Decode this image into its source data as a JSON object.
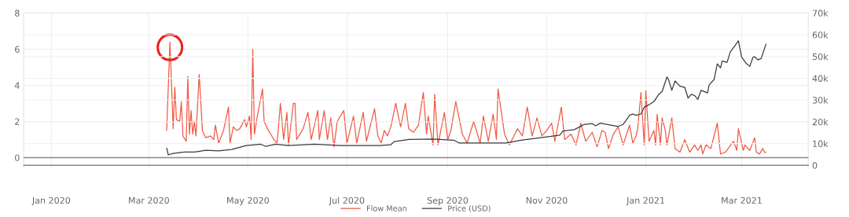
{
  "chart_data": {
    "type": "line",
    "xlim": [
      "2019-12-15",
      "2021-04-11"
    ],
    "xticks": [
      {
        "value": "2020-01-01",
        "label": "Jan 2020"
      },
      {
        "value": "2020-03-01",
        "label": "Mar 2020"
      },
      {
        "value": "2020-05-01",
        "label": "May 2020"
      },
      {
        "value": "2020-07-01",
        "label": "Jul 2020"
      },
      {
        "value": "2020-09-01",
        "label": "Sep 2020"
      },
      {
        "value": "2020-11-01",
        "label": "Nov 2020"
      },
      {
        "value": "2021-01-01",
        "label": "Jan 2021"
      },
      {
        "value": "2021-03-01",
        "label": "Mar 2021"
      }
    ],
    "ylim": [
      -0.55,
      8
    ],
    "yticks": [
      0,
      2,
      4,
      6,
      8
    ],
    "y2lim": [
      -1000,
      70000
    ],
    "y2ticks": [
      0,
      {
        "value": 10000,
        "label": "10k"
      },
      {
        "value": 20000,
        "label": "20k"
      },
      {
        "value": 30000,
        "label": "30k"
      },
      {
        "value": 40000,
        "label": "40k"
      },
      {
        "value": 50000,
        "label": "50k"
      },
      {
        "value": 60000,
        "label": "60k"
      },
      {
        "value": 70000,
        "label": "70k"
      }
    ],
    "grid": true,
    "legend": "bottom",
    "series": [
      {
        "name": "Flow Mean",
        "color": "#ef5a45",
        "x": [
          "2020-03-12",
          "2020-03-14",
          "2020-03-16",
          "2020-03-17",
          "2020-03-18",
          "2020-03-20",
          "2020-03-21",
          "2020-03-22",
          "2020-03-24",
          "2020-03-25",
          "2020-03-26",
          "2020-03-27",
          "2020-03-28",
          "2020-03-29",
          "2020-03-30",
          "2020-04-01",
          "2020-04-03",
          "2020-04-05",
          "2020-04-08",
          "2020-04-10",
          "2020-04-11",
          "2020-04-13",
          "2020-04-16",
          "2020-04-19",
          "2020-04-20",
          "2020-04-22",
          "2020-04-24",
          "2020-04-26",
          "2020-04-29",
          "2020-04-30",
          "2020-05-02",
          "2020-05-03",
          "2020-05-04",
          "2020-05-05",
          "2020-05-07",
          "2020-05-10",
          "2020-05-11",
          "2020-05-13",
          "2020-05-17",
          "2020-05-19",
          "2020-05-21",
          "2020-05-23",
          "2020-05-25",
          "2020-05-26",
          "2020-05-29",
          "2020-05-30",
          "2020-05-31",
          "2020-06-04",
          "2020-06-07",
          "2020-06-09",
          "2020-06-13",
          "2020-06-14",
          "2020-06-17",
          "2020-06-19",
          "2020-06-21",
          "2020-06-23",
          "2020-06-25",
          "2020-06-29",
          "2020-07-01",
          "2020-07-05",
          "2020-07-07",
          "2020-07-11",
          "2020-07-13",
          "2020-07-18",
          "2020-07-20",
          "2020-07-22",
          "2020-07-24",
          "2020-07-26",
          "2020-07-28",
          "2020-07-31",
          "2020-08-03",
          "2020-08-06",
          "2020-08-08",
          "2020-08-11",
          "2020-08-14",
          "2020-08-17",
          "2020-08-19",
          "2020-08-20",
          "2020-08-23",
          "2020-08-24",
          "2020-08-26",
          "2020-08-28",
          "2020-08-30",
          "2020-09-01",
          "2020-09-03",
          "2020-09-06",
          "2020-09-10",
          "2020-09-13",
          "2020-09-17",
          "2020-09-21",
          "2020-09-23",
          "2020-09-26",
          "2020-09-29",
          "2020-10-01",
          "2020-10-02",
          "2020-10-06",
          "2020-10-09",
          "2020-10-14",
          "2020-10-17",
          "2020-10-20",
          "2020-10-23",
          "2020-10-26",
          "2020-10-29",
          "2020-11-01",
          "2020-11-04",
          "2020-11-06",
          "2020-11-10",
          "2020-11-12",
          "2020-11-16",
          "2020-11-19",
          "2020-11-22",
          "2020-11-25",
          "2020-11-29",
          "2020-12-02",
          "2020-12-05",
          "2020-12-07",
          "2020-12-09",
          "2020-12-12",
          "2020-12-15",
          "2020-12-18",
          "2020-12-22",
          "2020-12-24",
          "2020-12-26",
          "2020-12-27",
          "2020-12-29",
          "2020-12-31",
          "2021-01-01",
          "2021-01-03",
          "2021-01-06",
          "2021-01-07",
          "2021-01-08",
          "2021-01-10",
          "2021-01-11",
          "2021-01-13",
          "2021-01-14",
          "2021-01-17",
          "2021-01-19",
          "2021-01-22",
          "2021-01-25",
          "2021-01-28",
          "2021-01-31",
          "2021-02-02",
          "2021-02-04",
          "2021-02-05",
          "2021-02-07",
          "2021-02-10",
          "2021-02-14",
          "2021-02-16",
          "2021-02-19",
          "2021-02-24",
          "2021-02-26",
          "2021-02-27",
          "2021-03-02",
          "2021-03-03",
          "2021-03-06",
          "2021-03-09",
          "2021-03-10",
          "2021-03-12",
          "2021-03-14",
          "2021-03-15",
          "2021-03-16"
        ],
        "values": [
          1.5,
          6.4,
          1.6,
          3.9,
          2.1,
          2.0,
          3.1,
          1.2,
          0.9,
          4.5,
          1.3,
          2.6,
          1.3,
          2.0,
          1.2,
          4.6,
          1.5,
          1.1,
          1.2,
          1.0,
          1.8,
          0.8,
          1.5,
          2.8,
          0.8,
          1.7,
          1.5,
          1.6,
          2.1,
          1.7,
          2.3,
          1.0,
          6.0,
          1.3,
          2.4,
          3.8,
          2.0,
          1.6,
          1.0,
          0.8,
          3.0,
          1.0,
          2.5,
          0.7,
          3.0,
          3.0,
          1.0,
          1.6,
          2.5,
          1.0,
          2.6,
          1.0,
          2.6,
          1.0,
          2.2,
          0.6,
          2.0,
          2.6,
          0.8,
          2.3,
          0.8,
          2.5,
          0.9,
          2.7,
          1.2,
          0.8,
          1.5,
          1.2,
          1.7,
          3.0,
          1.7,
          3.0,
          1.6,
          1.4,
          1.8,
          3.6,
          1.3,
          2.3,
          0.7,
          3.5,
          0.7,
          1.6,
          2.5,
          1.0,
          1.5,
          3.1,
          1.3,
          0.8,
          2.0,
          0.8,
          2.3,
          0.9,
          2.4,
          1.0,
          3.8,
          1.3,
          0.7,
          1.6,
          1.2,
          2.8,
          1.2,
          2.2,
          1.2,
          1.5,
          1.9,
          0.9,
          2.8,
          1.0,
          1.3,
          0.7,
          1.9,
          0.9,
          1.4,
          0.6,
          1.5,
          1.4,
          0.5,
          1.3,
          1.7,
          0.7,
          1.8,
          0.8,
          1.2,
          1.6,
          3.6,
          0.7,
          3.7,
          0.9,
          1.5,
          0.7,
          2.4,
          0.7,
          2.2,
          1.5,
          0.7,
          2.2,
          0.5,
          0.3,
          1.0,
          0.3,
          0.7,
          0.4,
          0.7,
          0.2,
          0.7,
          0.5,
          1.9,
          0.2,
          0.3,
          0.9,
          0.4,
          1.6,
          0.4,
          0.7,
          0.4,
          1.1,
          0.3,
          0.2,
          0.5,
          0.3,
          0.3
        ]
      },
      {
        "name": "Price (USD)",
        "color": "#3b3b3b",
        "axis": "y2",
        "x": [
          "2020-03-12",
          "2020-03-13",
          "2020-03-16",
          "2020-03-23",
          "2020-03-29",
          "2020-04-05",
          "2020-04-13",
          "2020-04-21",
          "2020-04-30",
          "2020-05-09",
          "2020-05-12",
          "2020-05-18",
          "2020-05-26",
          "2020-06-11",
          "2020-06-27",
          "2020-07-21",
          "2020-07-28",
          "2020-07-30",
          "2020-08-08",
          "2020-08-23",
          "2020-09-05",
          "2020-09-08",
          "2020-09-17",
          "2020-09-27",
          "2020-10-07",
          "2020-10-16",
          "2020-11-01",
          "2020-11-09",
          "2020-11-11",
          "2020-11-18",
          "2020-11-24",
          "2020-11-29",
          "2020-12-01",
          "2020-12-04",
          "2020-12-15",
          "2020-12-18",
          "2020-12-22",
          "2020-12-24",
          "2020-12-26",
          "2020-12-29",
          "2020-12-31",
          "2021-01-03",
          "2021-01-06",
          "2021-01-09",
          "2021-01-11",
          "2021-01-14",
          "2021-01-15",
          "2021-01-17",
          "2021-01-19",
          "2021-01-22",
          "2021-01-25",
          "2021-01-27",
          "2021-01-29",
          "2021-01-31",
          "2021-02-02",
          "2021-02-04",
          "2021-02-08",
          "2021-02-09",
          "2021-02-12",
          "2021-02-14",
          "2021-02-16",
          "2021-02-17",
          "2021-02-20",
          "2021-02-22",
          "2021-02-25",
          "2021-02-27",
          "2021-03-01",
          "2021-03-04",
          "2021-03-06",
          "2021-03-08",
          "2021-03-09",
          "2021-03-11",
          "2021-03-13",
          "2021-03-16"
        ],
        "values": [
          7900,
          4800,
          5500,
          6100,
          6100,
          6900,
          6700,
          7300,
          9100,
          9700,
          8700,
          9700,
          9100,
          9700,
          9100,
          9100,
          9500,
          10900,
          11900,
          12100,
          11500,
          10300,
          10300,
          10300,
          10300,
          11500,
          13100,
          13900,
          15800,
          16400,
          18800,
          19200,
          18200,
          19400,
          17900,
          18800,
          23000,
          23600,
          23000,
          23600,
          26700,
          27900,
          29300,
          32700,
          33900,
          40600,
          39400,
          34500,
          38800,
          36400,
          35800,
          30900,
          32700,
          32100,
          30300,
          34500,
          33300,
          37000,
          39400,
          46700,
          44800,
          47900,
          47300,
          52100,
          55200,
          57200,
          49700,
          46700,
          45500,
          49700,
          49900,
          48500,
          49100,
          55700
        ]
      }
    ]
  }
}
